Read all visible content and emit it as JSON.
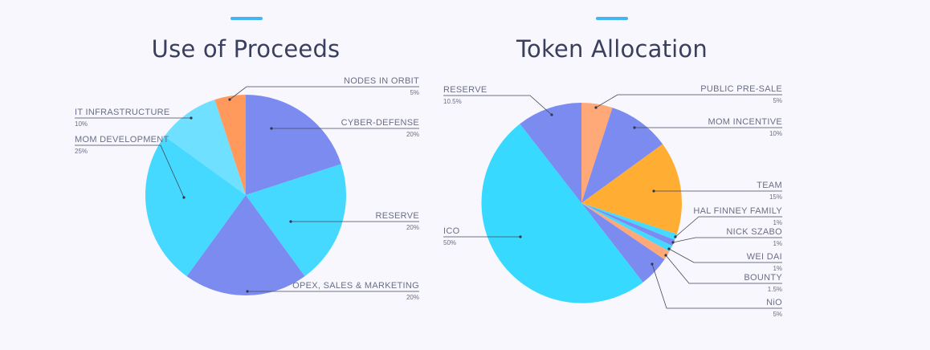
{
  "accent_color": "#41b6f0",
  "chart_data": [
    {
      "type": "pie",
      "title": "Use of Proceeds",
      "slices": [
        {
          "label": "CYBER-DEFENSE",
          "value": 20,
          "pct_label": "20%",
          "color": "#7b8bef"
        },
        {
          "label": "RESERVE",
          "value": 20,
          "pct_label": "20%",
          "color": "#45d9ff"
        },
        {
          "label": "OPEX, SALES & MARKETING",
          "value": 20,
          "pct_label": "20%",
          "color": "#7b8bef"
        },
        {
          "label": "MOM DEVELOPMENT",
          "value": 25,
          "pct_label": "25%",
          "color": "#45d9ff"
        },
        {
          "label": "IT  INFRASTRUCTURE",
          "value": 10,
          "pct_label": "10%",
          "color": "#6fe0ff"
        },
        {
          "label": "NODES  IN  ORBIT",
          "value": 5,
          "pct_label": "5%",
          "color": "#ff9a5c"
        }
      ]
    },
    {
      "type": "pie",
      "title": "Token Allocation",
      "slices": [
        {
          "label": "PUBLIC PRE-SALE",
          "value": 5,
          "pct_label": "5%",
          "color": "#ffa878"
        },
        {
          "label": "MOM INCENTIVE",
          "value": 10,
          "pct_label": "10%",
          "color": "#7b8bef"
        },
        {
          "label": "TEAM",
          "value": 15,
          "pct_label": "15%",
          "color": "#ffad33"
        },
        {
          "label": "HAL FINNEY FAMILY",
          "value": 1,
          "pct_label": "1%",
          "color": "#45d9ff"
        },
        {
          "label": "NICK SZABO",
          "value": 1,
          "pct_label": "1%",
          "color": "#7b8bef"
        },
        {
          "label": "WEI DAI",
          "value": 1,
          "pct_label": "1%",
          "color": "#45d9ff"
        },
        {
          "label": "BOUNTY",
          "value": 1.5,
          "pct_label": "1.5%",
          "color": "#ffa878"
        },
        {
          "label": "NiO",
          "value": 5,
          "pct_label": "5%",
          "color": "#7b8bef"
        },
        {
          "label": "ICO",
          "value": 50,
          "pct_label": "50%",
          "color": "#38d9ff"
        },
        {
          "label": "RESERVE",
          "value": 10.5,
          "pct_label": "10.5%",
          "color": "#7b8bef"
        }
      ]
    }
  ]
}
